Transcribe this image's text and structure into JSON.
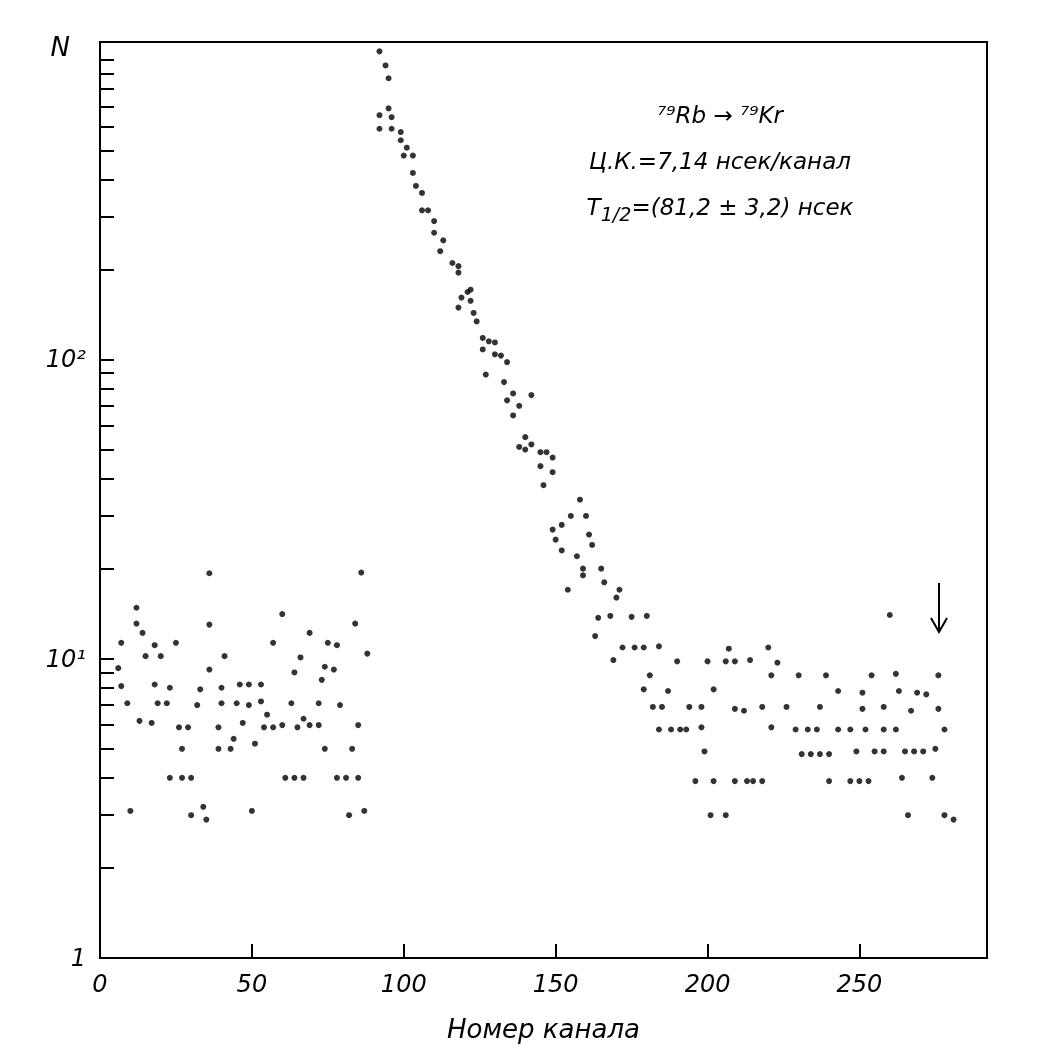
{
  "chart_data": {
    "type": "scatter",
    "xlabel": "Номер канала",
    "ylabel": "N",
    "annotations": [
      "⁷⁹Rb → ⁷⁹Kr",
      "Ц.К.=7,14 нсек/канал",
      "T$_{1/2}$=(81,2 ± 3,2) нсек"
    ],
    "log": "y",
    "marker": "circle",
    "color": "#000000",
    "xlim": [
      0,
      292
    ],
    "xticks": [
      0,
      50,
      100,
      150,
      200,
      250
    ],
    "ylim": [
      1,
      1150
    ],
    "yticks": [
      {
        "value": 1,
        "label": "1"
      },
      {
        "value": 2,
        "label": null
      },
      {
        "value": 3,
        "label": null
      },
      {
        "value": 4,
        "label": null
      },
      {
        "value": 5,
        "label": null
      },
      {
        "value": 6,
        "label": null
      },
      {
        "value": 7,
        "label": null
      },
      {
        "value": 8,
        "label": null
      },
      {
        "value": 9,
        "label": null
      },
      {
        "value": 10,
        "label": "10¹"
      },
      {
        "value": 20,
        "label": null
      },
      {
        "value": 30,
        "label": null
      },
      {
        "value": 40,
        "label": null
      },
      {
        "value": 50,
        "label": null
      },
      {
        "value": 60,
        "label": null
      },
      {
        "value": 70,
        "label": null
      },
      {
        "value": 80,
        "label": null
      },
      {
        "value": 90,
        "label": null
      },
      {
        "value": 100,
        "label": "10²"
      },
      {
        "value": 200,
        "label": null
      },
      {
        "value": 300,
        "label": null
      },
      {
        "value": 400,
        "label": null
      },
      {
        "value": 500,
        "label": null
      },
      {
        "value": 600,
        "label": null
      },
      {
        "value": 700,
        "label": null
      },
      {
        "value": 800,
        "label": null
      },
      {
        "value": 900,
        "label": null
      },
      {
        "value": 1000,
        "label": null
      }
    ],
    "x": [
      7,
      6,
      7,
      9,
      10,
      12,
      12,
      14,
      13,
      17,
      15,
      18,
      20,
      18,
      19,
      22,
      23,
      23,
      25,
      26,
      27,
      27,
      29,
      30,
      30,
      33,
      32,
      34,
      35,
      36,
      36,
      36,
      39,
      39,
      40,
      40,
      41,
      43,
      44,
      45,
      46,
      49,
      47,
      49,
      50,
      51,
      53,
      53,
      54,
      55,
      57,
      57,
      60,
      60,
      61,
      63,
      64,
      64,
      65,
      66,
      67,
      67,
      69,
      69,
      72,
      72,
      73,
      74,
      75,
      74,
      77,
      78,
      78,
      79,
      81,
      82,
      83,
      84,
      85,
      85,
      87,
      86,
      88,
      92,
      94,
      95,
      95,
      92,
      96,
      92,
      96,
      99,
      99,
      101,
      100,
      103,
      103,
      104,
      106,
      106,
      108,
      110,
      110,
      113,
      112,
      116,
      118,
      118,
      121,
      122,
      119,
      122,
      118,
      123,
      124,
      126,
      128,
      130,
      126,
      130,
      132,
      134,
      127,
      133,
      136,
      142,
      134,
      138,
      136,
      140,
      142,
      138,
      140,
      145,
      147,
      149,
      145,
      149,
      146,
      158,
      155,
      160,
      152,
      149,
      150,
      161,
      162,
      152,
      157,
      159,
      165,
      159,
      166,
      154,
      171,
      170,
      164,
      168,
      175,
      180,
      163,
      172,
      176,
      179,
      184,
      169,
      190,
      200,
      206,
      207,
      209,
      181,
      179,
      187,
      202,
      182,
      185,
      194,
      198,
      184,
      188,
      191,
      193,
      198,
      199,
      196,
      202,
      209,
      213,
      215,
      218,
      201,
      206,
      209,
      212,
      218,
      214,
      220,
      223,
      221,
      230,
      239,
      254,
      262,
      276,
      260,
      226,
      221,
      229,
      233,
      236,
      237,
      243,
      251,
      251,
      258,
      263,
      269,
      272,
      267,
      276,
      278,
      243,
      247,
      252,
      258,
      262,
      231,
      234,
      237,
      240,
      249,
      255,
      258,
      265,
      268,
      271,
      275,
      240,
      247,
      250,
      253,
      264,
      274,
      266,
      278,
      281
    ],
    "values": [
      11.3,
      9.3,
      8.1,
      7.1,
      3.1,
      14.8,
      13.1,
      12.2,
      6.2,
      6.1,
      10.2,
      11.1,
      10.2,
      8.2,
      7.1,
      7.1,
      8.0,
      4.0,
      11.3,
      5.9,
      5.0,
      4.0,
      5.9,
      4.0,
      3.0,
      7.9,
      7.0,
      3.2,
      2.9,
      19.3,
      13.0,
      9.2,
      5.9,
      5.0,
      8.0,
      7.1,
      10.2,
      5.0,
      5.4,
      7.1,
      8.2,
      8.2,
      6.1,
      7.0,
      3.1,
      5.2,
      8.2,
      7.2,
      5.9,
      6.5,
      5.9,
      11.3,
      14.1,
      6.0,
      4.0,
      7.1,
      4.0,
      9.0,
      5.9,
      10.1,
      6.3,
      4.0,
      12.2,
      6.0,
      6.0,
      7.1,
      8.5,
      9.4,
      11.3,
      5.0,
      9.2,
      11.1,
      4.0,
      7.0,
      4.0,
      3.0,
      5.0,
      13.1,
      6.0,
      4.0,
      3.1,
      19.4,
      10.4,
      1070,
      960,
      870,
      690,
      655,
      645,
      590,
      590,
      575,
      540,
      510,
      480,
      480,
      420,
      380,
      360,
      315,
      315,
      290,
      265,
      250,
      230,
      210,
      205,
      195,
      168,
      171,
      161,
      157,
      149,
      143,
      134,
      118,
      115,
      114,
      108,
      104,
      103,
      98,
      89,
      84,
      77,
      76,
      73,
      70,
      65,
      55,
      52,
      51,
      50,
      49,
      49,
      47,
      44,
      42,
      38,
      34,
      30,
      30,
      28,
      27,
      25,
      26,
      24,
      23,
      22,
      20,
      20,
      19,
      18,
      17,
      17,
      16,
      13.7,
      13.9,
      13.8,
      13.9,
      11.9,
      10.9,
      10.9,
      10.9,
      11.0,
      9.9,
      9.8,
      9.8,
      9.8,
      10.8,
      9.8,
      8.8,
      7.9,
      7.8,
      7.9,
      6.9,
      6.9,
      6.9,
      6.9,
      5.8,
      5.8,
      5.8,
      5.8,
      5.9,
      4.9,
      3.9,
      3.9,
      3.9,
      3.9,
      3.9,
      3.9,
      3.0,
      3.0,
      6.8,
      6.7,
      6.9,
      9.9,
      10.9,
      9.7,
      8.8,
      8.8,
      8.8,
      8.8,
      8.9,
      8.8,
      14.0,
      6.9,
      5.9,
      5.8,
      5.8,
      5.8,
      6.9,
      7.8,
      7.7,
      6.8,
      6.9,
      7.8,
      7.7,
      7.6,
      6.7,
      6.8,
      5.8,
      5.8,
      5.8,
      5.8,
      5.8,
      5.8,
      4.8,
      4.8,
      4.8,
      4.8,
      4.9,
      4.9,
      4.9,
      4.9,
      4.9,
      4.9,
      5.0,
      3.9,
      3.9,
      3.9,
      3.9,
      4.0,
      4.0,
      3.0,
      3.0,
      2.9
    ]
  }
}
